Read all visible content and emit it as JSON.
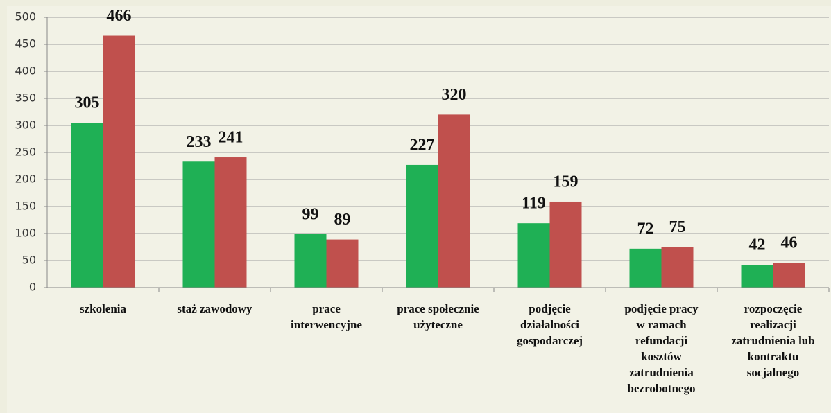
{
  "chart_data": {
    "type": "bar",
    "categories": [
      "szkolenia",
      "staż zawodowy",
      "prace\ninterwencyjne",
      "prace społecznie\nużyteczne",
      "podjęcie\ndziałalności\ngospodarczej",
      "podjęcie pracy\nw ramach\nrefundacji\nkosztów\nzatrudnienia\nbezrobotnego",
      "rozpoczęcie\nrealizacji\nzatrudnienia lub\nkontraktu\nsocjalnego"
    ],
    "series": [
      {
        "color": "#1fb055",
        "values": [
          305,
          233,
          99,
          227,
          119,
          72,
          42
        ]
      },
      {
        "color": "#c0504d",
        "values": [
          466,
          241,
          89,
          320,
          159,
          75,
          46
        ]
      }
    ],
    "ylim": [
      0,
      500
    ],
    "yticks": [
      0,
      50,
      100,
      150,
      200,
      250,
      300,
      350,
      400,
      450,
      500
    ],
    "grid": true
  }
}
